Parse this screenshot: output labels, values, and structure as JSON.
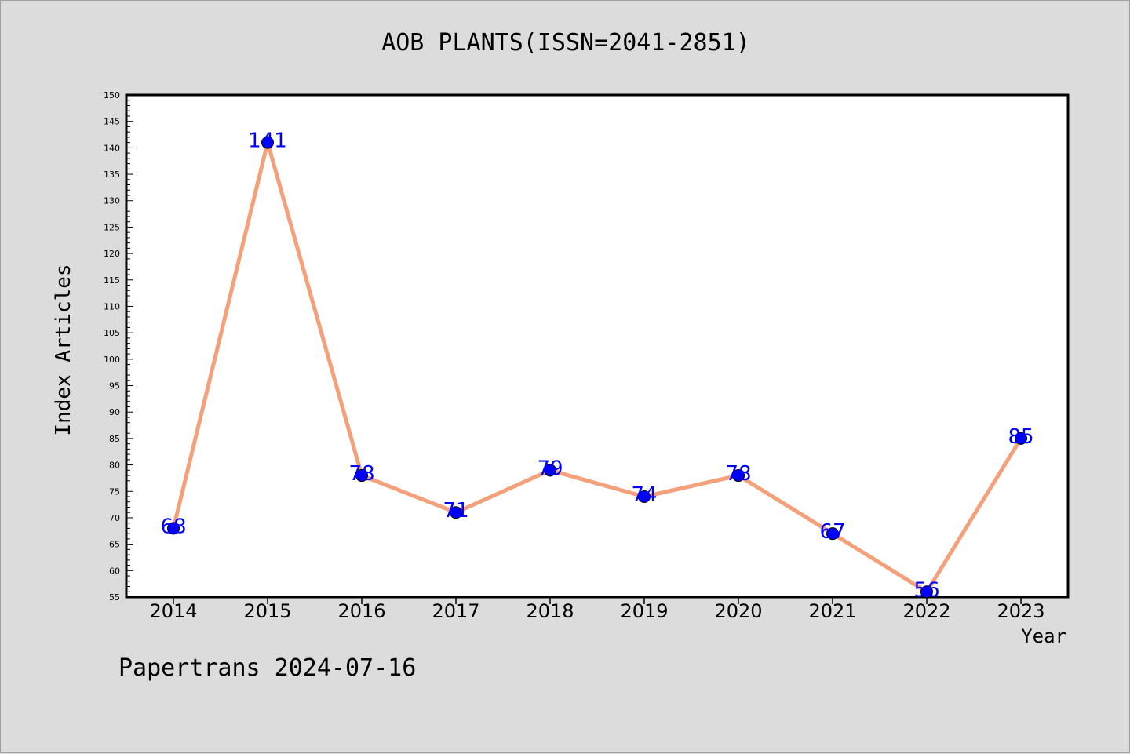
{
  "colors": {
    "background": "#dcdcdc",
    "plot_background": "#ffffff",
    "line": "#f4a07a",
    "marker_fill": "#0000ff",
    "data_label": "#0000ff"
  },
  "footer": {
    "text": "Papertrans 2024-07-16"
  },
  "chart_data": {
    "type": "line",
    "title": "AOB PLANTS(ISSN=2041-2851)",
    "xlabel": "Year",
    "ylabel": "Index Articles",
    "categories": [
      "2014",
      "2015",
      "2016",
      "2017",
      "2018",
      "2019",
      "2020",
      "2021",
      "2022",
      "2023"
    ],
    "values": [
      68,
      141,
      78,
      71,
      79,
      74,
      78,
      67,
      56,
      85
    ],
    "data_labels": [
      "68",
      "141",
      "78",
      "71",
      "79",
      "74",
      "78",
      "67",
      "56",
      "85"
    ],
    "ylim": [
      55,
      150
    ],
    "yticks": [
      55,
      60,
      65,
      70,
      75,
      80,
      85,
      90,
      95,
      100,
      105,
      110,
      115,
      120,
      125,
      130,
      135,
      140,
      145,
      150
    ],
    "grid": false,
    "legend": "none"
  }
}
